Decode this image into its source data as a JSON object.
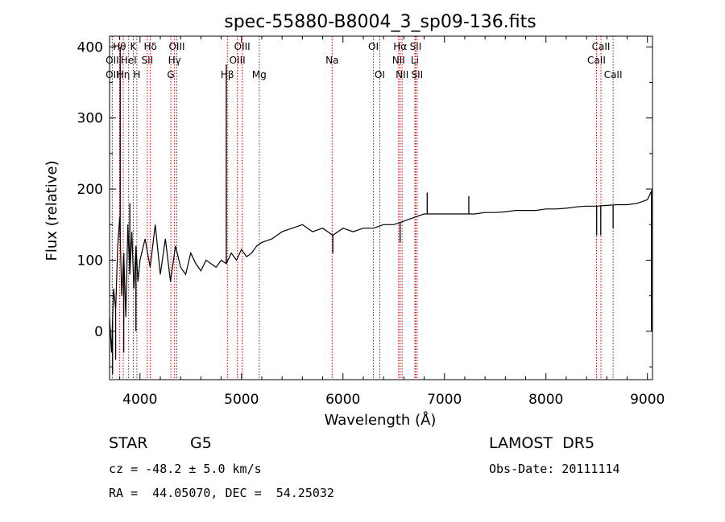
{
  "chart_data": {
    "type": "line",
    "title": "spec-55880-B8004_3_sp09-136.fits",
    "xlabel": "Wavelength (Å)",
    "ylabel": "Flux (relative)",
    "xlim": [
      3700,
      9050
    ],
    "ylim": [
      -68,
      415
    ],
    "x_ticks": [
      4000,
      5000,
      6000,
      7000,
      8000,
      9000
    ],
    "y_ticks": [
      0,
      100,
      200,
      300,
      400
    ],
    "grid": false,
    "line_color": "#000000",
    "marker_line_color": "#cc0000",
    "series": [
      {
        "x": [
          3700,
          3720,
          3740,
          3760,
          3780,
          3800,
          3820,
          3840,
          3860,
          3880,
          3900,
          3920,
          3940,
          3960,
          3980,
          4000,
          4050,
          4100,
          4150,
          4200,
          4250,
          4300,
          4350,
          4400,
          4450,
          4500,
          4550,
          4600,
          4650,
          4700,
          4750,
          4800,
          4850,
          4900,
          4950,
          5000,
          5050,
          5100,
          5150,
          5200,
          5300,
          5400,
          5500,
          5600,
          5700,
          5800,
          5900,
          6000,
          6100,
          6200,
          6300,
          6400,
          6500,
          6600,
          6700,
          6800,
          6900,
          7000,
          7100,
          7200,
          7300,
          7400,
          7500,
          7600,
          7700,
          7800,
          7900,
          8000,
          8100,
          8200,
          8300,
          8400,
          8500,
          8600,
          8700,
          8800,
          8900,
          9000,
          9050
        ],
        "y": [
          20,
          -30,
          60,
          30,
          120,
          160,
          50,
          110,
          20,
          150,
          80,
          140,
          60,
          120,
          70,
          100,
          130,
          90,
          150,
          80,
          130,
          70,
          120,
          90,
          80,
          110,
          95,
          85,
          100,
          95,
          90,
          100,
          95,
          110,
          100,
          115,
          105,
          110,
          120,
          125,
          130,
          140,
          145,
          150,
          140,
          145,
          135,
          145,
          140,
          145,
          145,
          150,
          150,
          155,
          160,
          165,
          165,
          165,
          165,
          165,
          165,
          167,
          167,
          168,
          170,
          170,
          170,
          172,
          172,
          173,
          175,
          176,
          176,
          177,
          178,
          178,
          180,
          185,
          200
        ]
      }
    ],
    "spikes": [
      {
        "x": 3730,
        "y": -60
      },
      {
        "x": 3760,
        "y": -40
      },
      {
        "x": 3805,
        "y": 400
      },
      {
        "x": 3840,
        "y": -30
      },
      {
        "x": 3900,
        "y": 180
      },
      {
        "x": 3960,
        "y": 0
      },
      {
        "x": 4850,
        "y": 375
      },
      {
        "x": 5900,
        "y": 110
      },
      {
        "x": 6563,
        "y": 125
      },
      {
        "x": 6830,
        "y": 195
      },
      {
        "x": 7240,
        "y": 190
      },
      {
        "x": 8500,
        "y": 135
      },
      {
        "x": 8540,
        "y": 135
      },
      {
        "x": 8662,
        "y": 145
      },
      {
        "x": 9040,
        "y": 0
      }
    ],
    "line_markers": [
      {
        "x": 3798,
        "label": "Hθ",
        "row": 1
      },
      {
        "x": 3727,
        "label": "OII",
        "row": 2
      },
      {
        "x": 3727,
        "label": "OII",
        "row": 3
      },
      {
        "x": 3835,
        "label": "Hη",
        "row": 3
      },
      {
        "x": 3888,
        "label": "HeI",
        "row": 2
      },
      {
        "x": 3934,
        "label": "K",
        "row": 1
      },
      {
        "x": 3969,
        "label": "H",
        "row": 3
      },
      {
        "x": 4072,
        "label": "SII",
        "row": 2
      },
      {
        "x": 4102,
        "label": "Hδ",
        "row": 1
      },
      {
        "x": 4304,
        "label": "G",
        "row": 3
      },
      {
        "x": 4340,
        "label": "Hγ",
        "row": 2
      },
      {
        "x": 4363,
        "label": "OIII",
        "row": 1
      },
      {
        "x": 4861,
        "label": "Hβ",
        "row": 3
      },
      {
        "x": 4959,
        "label": "OIII",
        "row": 2
      },
      {
        "x": 5007,
        "label": "OIII",
        "row": 1
      },
      {
        "x": 5175,
        "label": "Mg",
        "row": 3
      },
      {
        "x": 5893,
        "label": "Na",
        "row": 2
      },
      {
        "x": 6300,
        "label": "OI",
        "row": 1
      },
      {
        "x": 6363,
        "label": "OI",
        "row": 3
      },
      {
        "x": 6548,
        "label": "NII",
        "row": 2
      },
      {
        "x": 6563,
        "label": "Hα",
        "row": 1
      },
      {
        "x": 6583,
        "label": "NII",
        "row": 3
      },
      {
        "x": 6708,
        "label": "Li",
        "row": 2
      },
      {
        "x": 6716,
        "label": "SII",
        "row": 1
      },
      {
        "x": 6731,
        "label": "SII",
        "row": 3
      },
      {
        "x": 8498,
        "label": "CaII",
        "row": 2
      },
      {
        "x": 8542,
        "label": "CaII",
        "row": 1
      },
      {
        "x": 8662,
        "label": "CaII",
        "row": 3
      }
    ]
  },
  "footer": {
    "class_label": "STAR",
    "subclass": "G5",
    "survey": "LAMOST  DR5",
    "redshift_line": "cz = -48.2 ± 5.0 km/s",
    "obs_date": "Obs-Date: 20111114",
    "coords": "RA =  44.05070, DEC =  54.25032"
  }
}
